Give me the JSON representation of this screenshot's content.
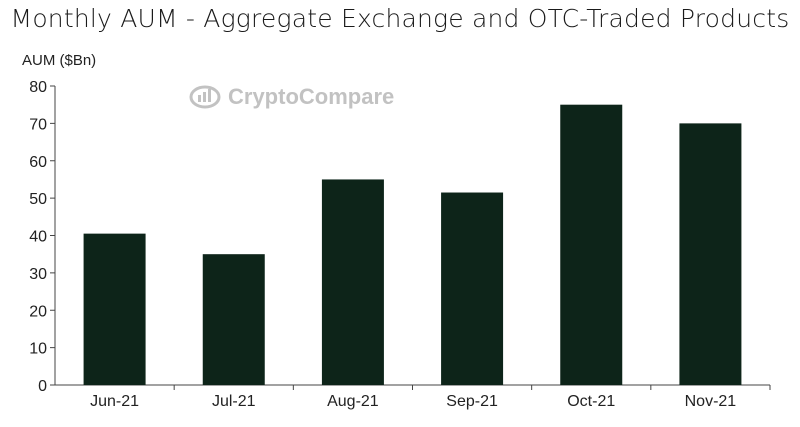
{
  "chart_data": {
    "type": "bar",
    "title": "Monthly AUM - Aggregate Exchange and OTC-Traded Products",
    "ylabel": "AUM ($Bn)",
    "xlabel": "",
    "categories": [
      "Jun-21",
      "Jul-21",
      "Aug-21",
      "Sep-21",
      "Oct-21",
      "Nov-21"
    ],
    "values": [
      40.5,
      35,
      55,
      51.5,
      75,
      70
    ],
    "ylim": [
      0,
      80
    ],
    "yticks": [
      0,
      10,
      20,
      30,
      40,
      50,
      60,
      70,
      80
    ],
    "bar_color": "#0d2419",
    "grid": false,
    "legend": "none"
  },
  "watermark": {
    "text": "CryptoCompare",
    "icon": "cryptocompare-logo-icon",
    "color": "#c2c2c2"
  }
}
